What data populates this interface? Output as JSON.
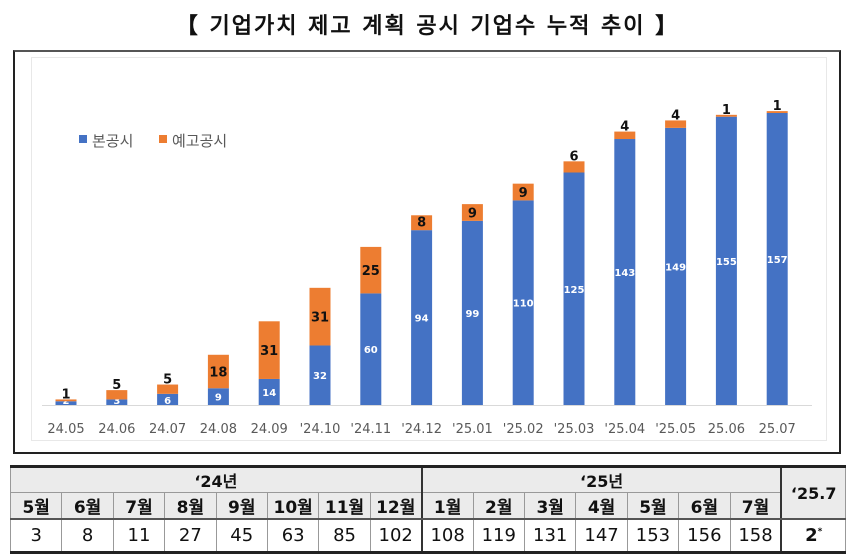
{
  "title": "【 기업가치 제고 계획 공시 기업수 누적 추이 】",
  "chart_data": {
    "type": "bar",
    "stacked": true,
    "title": "",
    "xlabel": "",
    "ylabel": "",
    "ylim": [
      0,
      160
    ],
    "grid": false,
    "legend_position": "top-left",
    "categories": [
      "24.05",
      "24.06",
      "24.07",
      "24.08",
      "24.09",
      "'24.10",
      "'24.11",
      "'24.12",
      "'25.01",
      "'25.02",
      "'25.03",
      "'25.04",
      "'25.05",
      "25.06",
      "25.07"
    ],
    "series": [
      {
        "name": "본공시",
        "color": "#4472C4",
        "values": [
          2,
          3,
          6,
          9,
          14,
          32,
          60,
          94,
          99,
          110,
          125,
          143,
          149,
          155,
          157
        ]
      },
      {
        "name": "예고공시",
        "color": "#ED7D31",
        "values": [
          1,
          5,
          5,
          18,
          31,
          31,
          25,
          8,
          9,
          9,
          6,
          4,
          4,
          1,
          1
        ]
      }
    ]
  },
  "table": {
    "year_headers": [
      {
        "label": "‘24년",
        "span": 8
      },
      {
        "label": "‘25년",
        "span": 7
      }
    ],
    "months": [
      "5월",
      "6월",
      "7월",
      "8월",
      "9월",
      "10월",
      "11월",
      "12월",
      "1월",
      "2월",
      "3월",
      "4월",
      "5월",
      "6월",
      "7월"
    ],
    "values": [
      "3",
      "8",
      "11",
      "27",
      "45",
      "63",
      "85",
      "102",
      "108",
      "119",
      "131",
      "147",
      "153",
      "156",
      "158"
    ],
    "extra_header": "‘25.7",
    "extra_value": "2",
    "extra_mark": "*"
  }
}
